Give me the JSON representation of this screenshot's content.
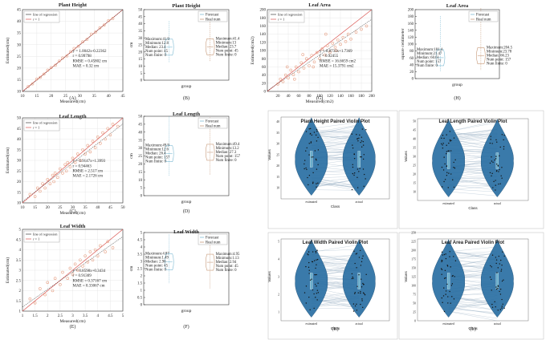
{
  "chart_data": [
    {
      "id": "A",
      "type": "scatter",
      "title": "Plant Height",
      "xlabel": "Measured(cm)",
      "ylabel": "Estimated(cm)",
      "xlim": [
        10,
        45
      ],
      "ylim": [
        10,
        45
      ],
      "xticks": [
        10,
        15,
        20,
        25,
        30,
        35,
        40,
        45
      ],
      "yticks": [
        10,
        15,
        20,
        25,
        30,
        35,
        40,
        45
      ],
      "legend": [
        "line of regression",
        "r = 1"
      ],
      "stats": [
        "y = 1.0042x-0.22362",
        "r = 0.99798",
        "RMSE = 0.45802 cm",
        "MAE = 0.32 cm"
      ],
      "fit": {
        "slope": 1.0042,
        "intercept": -0.22362
      },
      "points": [
        [
          12,
          12.1
        ],
        [
          13.5,
          13.2
        ],
        [
          15,
          15.3
        ],
        [
          16.2,
          16
        ],
        [
          17.5,
          17.4
        ],
        [
          18.8,
          19.1
        ],
        [
          20,
          20.2
        ],
        [
          21.5,
          21.2
        ],
        [
          22.8,
          23
        ],
        [
          24,
          24.3
        ],
        [
          25.5,
          25.2
        ],
        [
          26.8,
          27
        ],
        [
          28,
          28.4
        ],
        [
          29.5,
          29.3
        ],
        [
          31,
          31.2
        ],
        [
          32.5,
          32.3
        ],
        [
          34,
          34.5
        ],
        [
          35.5,
          35.4
        ],
        [
          37,
          37.2
        ],
        [
          38.5,
          38.4
        ],
        [
          40,
          40.3
        ],
        [
          41.5,
          41.2
        ]
      ],
      "caption": "(A)"
    },
    {
      "id": "B",
      "type": "violin",
      "title": "Plant Height",
      "ylabel": "cm",
      "xlabel": "group",
      "ylim": [
        0,
        50
      ],
      "yticks": [
        0,
        5,
        10,
        15,
        20,
        25,
        30,
        35,
        40,
        45,
        50
      ],
      "legend": [
        "Forecast",
        "Real num"
      ],
      "left_stats": [
        "Maximum:41.9",
        "Minimum:12.8",
        "Median: 23.4",
        "Num point: 45",
        "Num finite: 0"
      ],
      "right_stats": [
        "Maximum:41.4",
        "Minimum:13",
        "Median: 23.7",
        "Num point: 45",
        "Num finite: 0"
      ],
      "caption": "(B)"
    },
    {
      "id": "G",
      "type": "scatter",
      "title": "Leaf Area",
      "xlabel": "Measured(cm2)",
      "ylabel": "Estimated(cm2)",
      "xlim": [
        0,
        200
      ],
      "ylim": [
        0,
        200
      ],
      "xticks": [
        20,
        40,
        60,
        80,
        100,
        120,
        140,
        160,
        180,
        200
      ],
      "yticks": [
        0,
        20,
        40,
        60,
        80,
        100,
        120,
        140,
        160,
        180,
        200
      ],
      "legend": [
        "line of regression",
        "r = 1"
      ],
      "stats": [
        "y = 0.8733x+1.7369",
        "r = 0.92455",
        "RMSE = 16.6659 cm2",
        "MAE = 15.3791 cm2"
      ],
      "fit": {
        "slope": 0.8733,
        "intercept": 1.7369
      },
      "points": [
        [
          20,
          18
        ],
        [
          25,
          30
        ],
        [
          30,
          24
        ],
        [
          35,
          40
        ],
        [
          40,
          33
        ],
        [
          45,
          52
        ],
        [
          50,
          41
        ],
        [
          55,
          60
        ],
        [
          60,
          48
        ],
        [
          65,
          70
        ],
        [
          70,
          57
        ],
        [
          75,
          80
        ],
        [
          80,
          63
        ],
        [
          85,
          88
        ],
        [
          90,
          72
        ],
        [
          95,
          95
        ],
        [
          100,
          80
        ],
        [
          105,
          104
        ],
        [
          110,
          89
        ],
        [
          115,
          112
        ],
        [
          120,
          96
        ],
        [
          125,
          118
        ],
        [
          130,
          108
        ],
        [
          135,
          126
        ],
        [
          140,
          115
        ],
        [
          145,
          132
        ],
        [
          150,
          122
        ],
        [
          155,
          140
        ],
        [
          160,
          128
        ],
        [
          170,
          145
        ],
        [
          180,
          152
        ],
        [
          190,
          160
        ],
        [
          38,
          60
        ],
        [
          52,
          30
        ],
        [
          68,
          90
        ],
        [
          88,
          60
        ],
        [
          112,
          140
        ],
        [
          132,
          100
        ]
      ],
      "caption": "(G)"
    },
    {
      "id": "H",
      "type": "violin",
      "title": "Leaf Area",
      "ylabel": "square centimeter",
      "xlabel": "group",
      "ylim": [
        0,
        200
      ],
      "yticks": [
        0,
        20,
        40,
        60,
        80,
        100,
        120,
        140,
        160,
        180,
        200
      ],
      "legend": [
        "Forecast",
        "Real num"
      ],
      "left_stats": [
        "Maximum:181.4",
        "Minimum:21.47",
        "Median: 60.61",
        "Num point: 157",
        "Num finite: 0"
      ],
      "right_stats": [
        "Maximum:204.5",
        "Minimum:23.78",
        "Median: 66.23",
        "Num point: 157",
        "Num finite: 0"
      ],
      "caption": "(H)"
    },
    {
      "id": "C",
      "type": "scatter",
      "title": "Leaf Length",
      "xlabel": "Measured(cm)",
      "ylabel": "Estimated(cm)",
      "xlim": [
        10,
        50
      ],
      "ylim": [
        10,
        50
      ],
      "xticks": [
        10,
        15,
        20,
        25,
        30,
        35,
        40,
        45,
        50
      ],
      "yticks": [
        10,
        15,
        20,
        25,
        30,
        35,
        40,
        45,
        50
      ],
      "legend": [
        "line of regression",
        "r = 1"
      ],
      "stats": [
        "y = 0.9147x+1.3993",
        "r = 0.94463",
        "RMSE = 2.517 cm",
        "MAE = 2.1726 cm"
      ],
      "fit": {
        "slope": 0.9147,
        "intercept": 1.3993
      },
      "points": [
        [
          13,
          14
        ],
        [
          15,
          13
        ],
        [
          16,
          17
        ],
        [
          17,
          15.5
        ],
        [
          18,
          19
        ],
        [
          19,
          17
        ],
        [
          20,
          21
        ],
        [
          21,
          19
        ],
        [
          22,
          23
        ],
        [
          22.5,
          20
        ],
        [
          23,
          24
        ],
        [
          24,
          22
        ],
        [
          25,
          26
        ],
        [
          26,
          24
        ],
        [
          27,
          28
        ],
        [
          27.5,
          25
        ],
        [
          28,
          29
        ],
        [
          29,
          27
        ],
        [
          30,
          31
        ],
        [
          31,
          29
        ],
        [
          32,
          33
        ],
        [
          33,
          30
        ],
        [
          34,
          35
        ],
        [
          35,
          33
        ],
        [
          36,
          37
        ],
        [
          37,
          34
        ],
        [
          38,
          39
        ],
        [
          39,
          36
        ],
        [
          40,
          41
        ],
        [
          41,
          38
        ],
        [
          42,
          43
        ],
        [
          43,
          40
        ],
        [
          44,
          45
        ],
        [
          45,
          42
        ],
        [
          46,
          47
        ],
        [
          48,
          46
        ]
      ],
      "caption": "(C)"
    },
    {
      "id": "D",
      "type": "violin",
      "title": "Leaf Length",
      "ylabel": "cm",
      "xlabel": "group",
      "ylim": [
        0,
        50
      ],
      "yticks": [
        0,
        5,
        10,
        15,
        20,
        25,
        30,
        35,
        40,
        45,
        50
      ],
      "legend": [
        "Forecast",
        "Real num"
      ],
      "left_stats": [
        "Maximum:49.9",
        "Minimum:12.6",
        "Median: 26.4",
        "Num point: 157",
        "Num finite: 0"
      ],
      "right_stats": [
        "Maximum:49.4",
        "Minimum:13.2",
        "Median: 27.3",
        "Num point: 157",
        "Num finite: 0"
      ],
      "caption": "(D)"
    },
    {
      "id": "E",
      "type": "scatter",
      "title": "Leaf Width",
      "xlabel": "Measured(cm)",
      "ylabel": "Estimated(cm)",
      "xlim": [
        1,
        5
      ],
      "ylim": [
        1,
        5
      ],
      "xticks": [
        1,
        1.5,
        2,
        2.5,
        3,
        3.5,
        4,
        4.5,
        5
      ],
      "yticks": [
        1,
        1.5,
        2,
        2.5,
        3,
        3.5,
        4,
        4.5,
        5
      ],
      "legend": [
        "line of regression",
        "r = 1"
      ],
      "stats": [
        "y = 0.8598x+0.3434",
        "r = 0.91309",
        "RMSE = 0.37167 cm",
        "MAE = 0.33067 cm"
      ],
      "fit": {
        "slope": 0.8598,
        "intercept": 0.3434
      },
      "points": [
        [
          1.3,
          1.6
        ],
        [
          1.5,
          1.4
        ],
        [
          1.7,
          2.1
        ],
        [
          1.9,
          1.8
        ],
        [
          2.0,
          2.4
        ],
        [
          2.2,
          2.0
        ],
        [
          2.3,
          2.6
        ],
        [
          2.5,
          2.3
        ],
        [
          2.6,
          2.9
        ],
        [
          2.8,
          2.6
        ],
        [
          2.9,
          3.1
        ],
        [
          3.0,
          2.8
        ],
        [
          3.1,
          3.3
        ],
        [
          3.2,
          3.0
        ],
        [
          3.3,
          3.5
        ],
        [
          3.4,
          3.2
        ],
        [
          3.5,
          3.7
        ],
        [
          3.6,
          3.4
        ],
        [
          3.7,
          3.9
        ],
        [
          3.8,
          3.5
        ],
        [
          3.9,
          4.0
        ],
        [
          4.0,
          3.7
        ],
        [
          4.1,
          4.2
        ],
        [
          4.3,
          3.9
        ],
        [
          4.4,
          4.4
        ],
        [
          4.6,
          4.1
        ]
      ],
      "caption": "(E)"
    },
    {
      "id": "F",
      "type": "violin",
      "title": "Leaf Width",
      "ylabel": "cm",
      "xlabel": "group",
      "ylim": [
        0,
        5
      ],
      "yticks": [
        0,
        0.5,
        1,
        1.5,
        2,
        2.5,
        3,
        3.5,
        4,
        4.5,
        5
      ],
      "legend": [
        "Forecast",
        "Real num"
      ],
      "left_stats": [
        "Maximum:4.87",
        "Minimum:1.49",
        "Median: 2.96",
        "Num point: 45",
        "Num finite: 0"
      ],
      "right_stats": [
        "Maximum:4.95",
        "Minimum:1.13",
        "Median: 2.94",
        "Num point: 45",
        "Num finite: 0"
      ],
      "caption": "(F)"
    },
    {
      "id": "I",
      "type": "violin-paired",
      "title": "Plant Height Paired Violin Plot",
      "xlabel": "Class",
      "ylabel": "Values",
      "categories": [
        "estimated",
        "actual"
      ],
      "ylim": [
        5,
        45
      ],
      "yticks": [
        10,
        15,
        20,
        25,
        30,
        35,
        40
      ],
      "caption": "(I)"
    },
    {
      "id": "J",
      "type": "violin-paired",
      "title": "Leaf Length Paired Violin Plot",
      "xlabel": "Class",
      "ylabel": "Values",
      "categories": [
        "estimated",
        "actual"
      ],
      "ylim": [
        5,
        55
      ],
      "yticks": [
        10,
        15,
        20,
        25,
        30,
        35,
        40,
        45,
        50
      ],
      "caption": "(J)"
    },
    {
      "id": "K",
      "type": "violin-paired",
      "title": "Leaf Width Paired Violin Plot",
      "xlabel": "Class",
      "ylabel": "Values",
      "categories": [
        "estimated",
        "actual"
      ],
      "ylim": [
        0.5,
        5.5
      ],
      "yticks": [
        1,
        2,
        3,
        4,
        5
      ],
      "caption": "(K)"
    },
    {
      "id": "L",
      "type": "violin-paired",
      "title": "Leaf Area Paired Violin Plot",
      "xlabel": "Class",
      "ylabel": "Values",
      "categories": [
        "estimated",
        "actual"
      ],
      "ylim": [
        0,
        250
      ],
      "yticks": [
        0,
        25,
        50,
        75,
        100,
        125,
        150,
        175,
        200,
        225,
        250
      ],
      "caption": "(L)"
    }
  ],
  "colors": {
    "scatter_point": "#e8a58a",
    "fit_line": "#1f1f1f",
    "ref_line": "#d9534f",
    "violin": "#2a6fa3",
    "violin_edge": "#1b4f77",
    "pair_line": "#8fa7bd",
    "box": "#6aaecb"
  }
}
